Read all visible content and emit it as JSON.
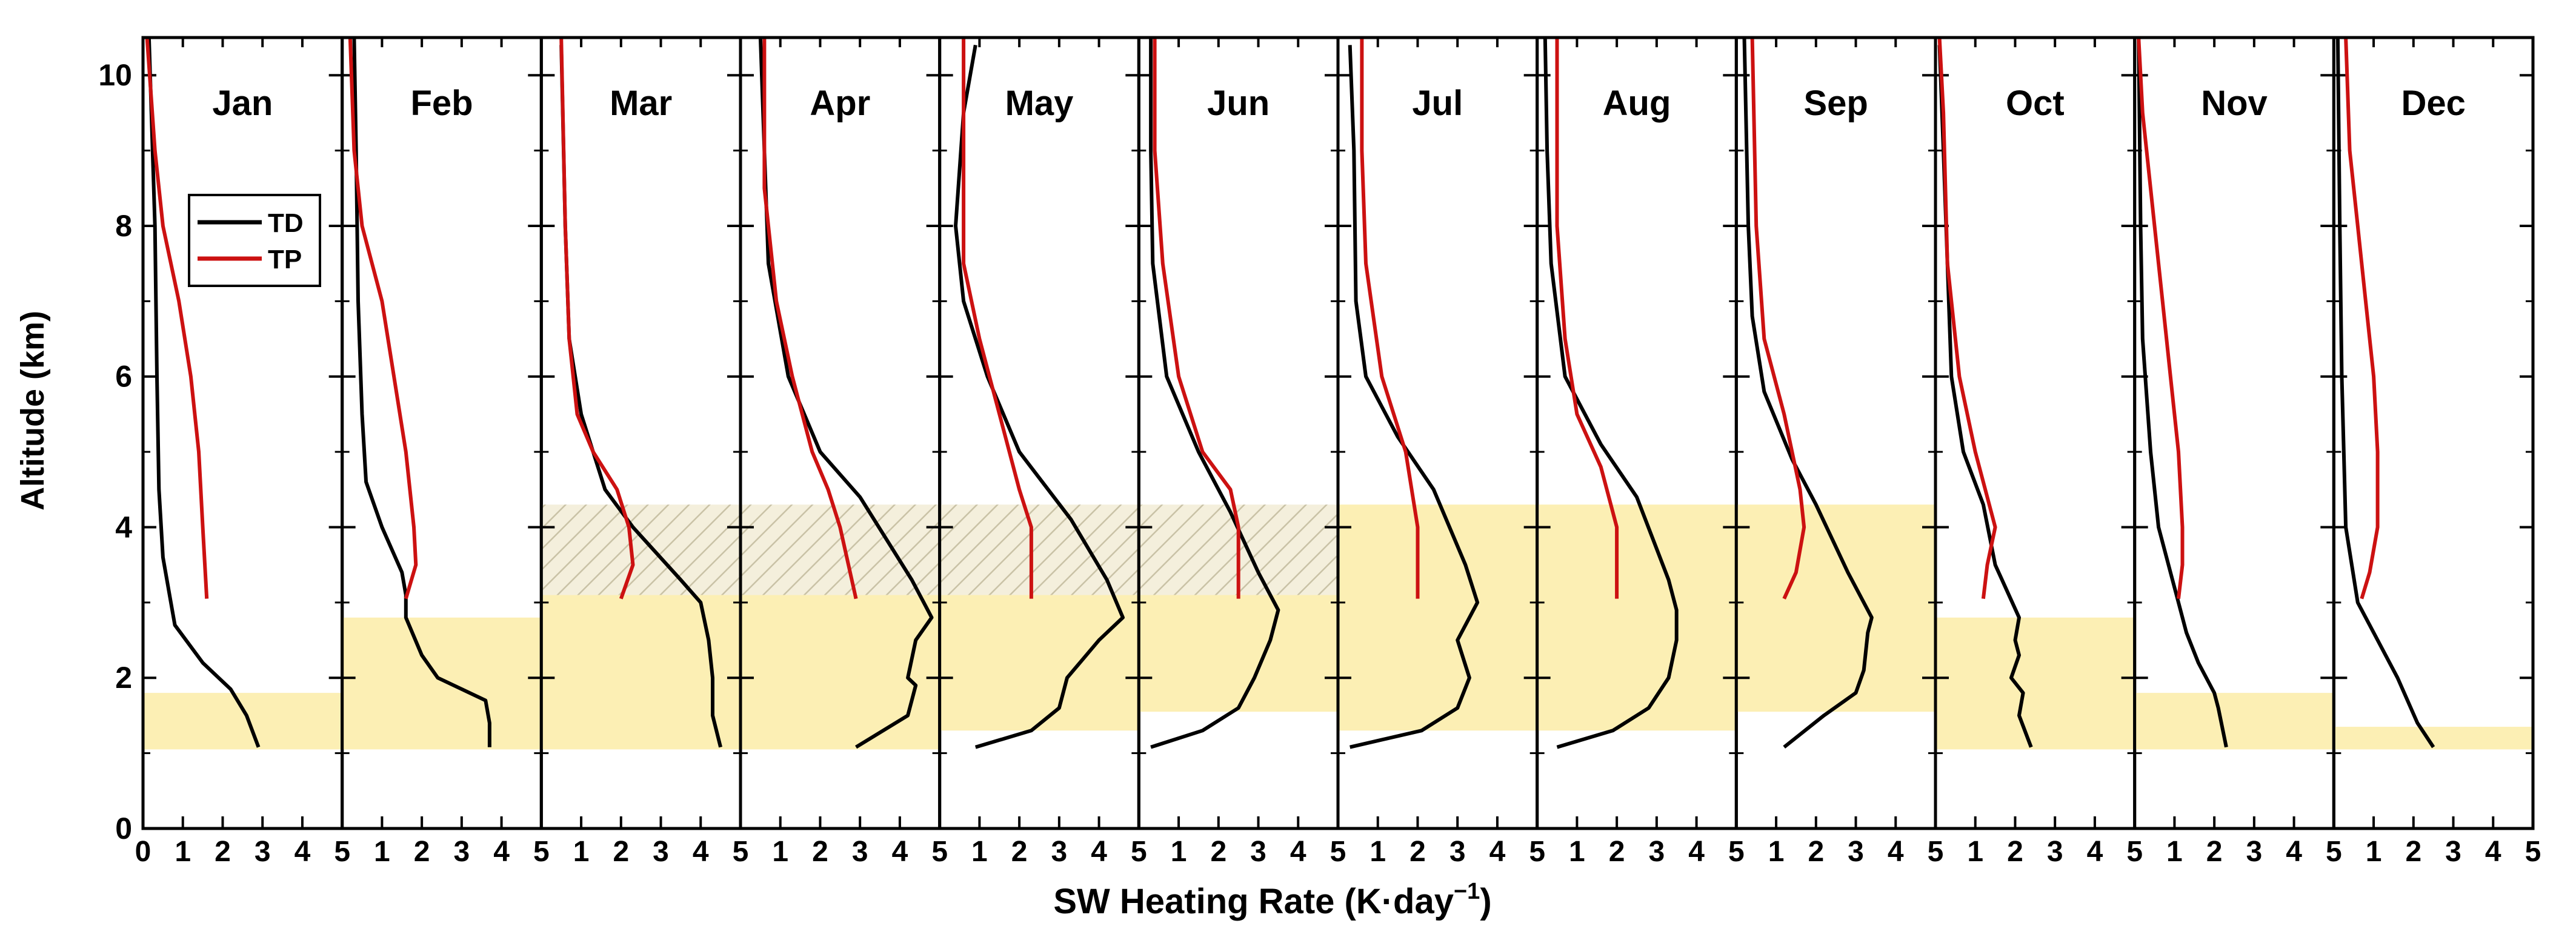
{
  "chart_data": {
    "type": "line",
    "xlabel": "SW Heating Rate (K·day",
    "xlabel_sup": "−1",
    "xlabel_close": ")",
    "ylabel": "Altitude (km)",
    "xlim": [
      0,
      5
    ],
    "ylim": [
      0,
      10.5
    ],
    "x_ticks": [
      "0",
      "1",
      "2",
      "3",
      "4",
      "5"
    ],
    "y_ticks": [
      "0",
      "2",
      "4",
      "6",
      "8",
      "10"
    ],
    "legend": {
      "placement": "upper-left of first panel",
      "entries": [
        "TD",
        "TP"
      ]
    },
    "colors": {
      "TD": "#000000",
      "TP": "#cc1111",
      "band": "#fcefb4",
      "hatch": "#d9d3bc"
    },
    "panels": [
      {
        "month": "Jan",
        "band": [
          1.05,
          1.8
        ],
        "hatch": null,
        "TD": [
          [
            2.9,
            1.08
          ],
          [
            2.6,
            1.5
          ],
          [
            2.2,
            1.85
          ],
          [
            1.5,
            2.2
          ],
          [
            0.8,
            2.7
          ],
          [
            0.7,
            3.0
          ],
          [
            0.5,
            3.6
          ],
          [
            0.4,
            4.5
          ],
          [
            0.35,
            6
          ],
          [
            0.3,
            8
          ],
          [
            0.15,
            10.5
          ]
        ],
        "TP": [
          [
            1.6,
            3.05
          ],
          [
            1.5,
            4
          ],
          [
            1.4,
            5
          ],
          [
            1.2,
            6
          ],
          [
            0.9,
            7
          ],
          [
            0.5,
            8
          ],
          [
            0.3,
            9
          ],
          [
            0.1,
            10.5
          ]
        ]
      },
      {
        "month": "Feb",
        "band": [
          1.05,
          2.8
        ],
        "hatch": null,
        "TD": [
          [
            3.7,
            1.08
          ],
          [
            3.7,
            1.4
          ],
          [
            3.6,
            1.7
          ],
          [
            2.4,
            2.0
          ],
          [
            2.0,
            2.3
          ],
          [
            1.6,
            2.8
          ],
          [
            1.6,
            3.1
          ],
          [
            1.5,
            3.4
          ],
          [
            1.0,
            4.0
          ],
          [
            0.6,
            4.6
          ],
          [
            0.5,
            5.5
          ],
          [
            0.4,
            7
          ],
          [
            0.35,
            9
          ],
          [
            0.3,
            10.5
          ]
        ],
        "TP": [
          [
            1.6,
            3.05
          ],
          [
            1.85,
            3.5
          ],
          [
            1.8,
            4
          ],
          [
            1.6,
            5
          ],
          [
            1.3,
            6
          ],
          [
            1.0,
            7
          ],
          [
            0.5,
            8
          ],
          [
            0.3,
            9
          ],
          [
            0.2,
            10.5
          ]
        ]
      },
      {
        "month": "Mar",
        "band": [
          1.05,
          3.1
        ],
        "hatch": [
          3.1,
          4.3
        ],
        "TD": [
          [
            4.5,
            1.08
          ],
          [
            4.3,
            1.5
          ],
          [
            4.3,
            2.0
          ],
          [
            4.2,
            2.5
          ],
          [
            4.0,
            3.0
          ],
          [
            3.5,
            3.3
          ],
          [
            2.3,
            4.0
          ],
          [
            1.6,
            4.5
          ],
          [
            1.0,
            5.5
          ],
          [
            0.7,
            6.5
          ],
          [
            0.6,
            8
          ],
          [
            0.5,
            10.4
          ]
        ],
        "TP": [
          [
            2.0,
            3.05
          ],
          [
            2.3,
            3.5
          ],
          [
            2.2,
            4.0
          ],
          [
            1.9,
            4.5
          ],
          [
            1.3,
            5.0
          ],
          [
            0.9,
            5.5
          ],
          [
            0.7,
            6.5
          ],
          [
            0.6,
            8
          ],
          [
            0.5,
            10.5
          ]
        ]
      },
      {
        "month": "Apr",
        "band": [
          1.05,
          3.1
        ],
        "hatch": [
          3.1,
          4.3
        ],
        "TD": [
          [
            2.9,
            1.08
          ],
          [
            4.2,
            1.5
          ],
          [
            4.4,
            1.9
          ],
          [
            4.2,
            2.0
          ],
          [
            4.4,
            2.5
          ],
          [
            4.8,
            2.8
          ],
          [
            4.3,
            3.3
          ],
          [
            3.0,
            4.4
          ],
          [
            2.0,
            5.0
          ],
          [
            1.2,
            6.0
          ],
          [
            0.7,
            7.5
          ],
          [
            0.6,
            9
          ],
          [
            0.5,
            10.5
          ]
        ],
        "TP": [
          [
            2.9,
            3.05
          ],
          [
            2.5,
            4.0
          ],
          [
            2.2,
            4.5
          ],
          [
            1.8,
            5.0
          ],
          [
            1.3,
            6.0
          ],
          [
            0.9,
            7.0
          ],
          [
            0.6,
            8.5
          ],
          [
            0.6,
            10.5
          ]
        ]
      },
      {
        "month": "May",
        "band": [
          1.3,
          3.1
        ],
        "hatch": [
          3.1,
          4.3
        ],
        "TD": [
          [
            0.9,
            1.08
          ],
          [
            2.3,
            1.3
          ],
          [
            3.0,
            1.6
          ],
          [
            3.2,
            2.0
          ],
          [
            4.0,
            2.5
          ],
          [
            4.6,
            2.8
          ],
          [
            4.2,
            3.3
          ],
          [
            3.3,
            4.1
          ],
          [
            2.0,
            5.0
          ],
          [
            1.2,
            6.0
          ],
          [
            0.6,
            7.0
          ],
          [
            0.4,
            8.0
          ],
          [
            0.6,
            9.5
          ],
          [
            0.9,
            10.4
          ]
        ],
        "TP": [
          [
            2.3,
            3.05
          ],
          [
            2.3,
            4.0
          ],
          [
            2.0,
            4.5
          ],
          [
            1.5,
            5.5
          ],
          [
            1.0,
            6.5
          ],
          [
            0.6,
            7.5
          ],
          [
            0.6,
            10.5
          ]
        ]
      },
      {
        "month": "Jun",
        "band": [
          1.55,
          3.1
        ],
        "hatch": [
          3.1,
          4.3
        ],
        "TD": [
          [
            0.3,
            1.08
          ],
          [
            1.6,
            1.3
          ],
          [
            2.5,
            1.6
          ],
          [
            2.9,
            2.0
          ],
          [
            3.3,
            2.5
          ],
          [
            3.5,
            2.9
          ],
          [
            3.0,
            3.4
          ],
          [
            2.3,
            4.2
          ],
          [
            1.5,
            5.0
          ],
          [
            0.7,
            6.0
          ],
          [
            0.35,
            7.5
          ],
          [
            0.3,
            9
          ],
          [
            0.3,
            10.5
          ]
        ],
        "TP": [
          [
            2.5,
            3.05
          ],
          [
            2.5,
            4.0
          ],
          [
            2.3,
            4.5
          ],
          [
            1.6,
            5.0
          ],
          [
            1.0,
            6.0
          ],
          [
            0.6,
            7.5
          ],
          [
            0.4,
            9
          ],
          [
            0.4,
            10.5
          ]
        ]
      },
      {
        "month": "Jul",
        "band": [
          1.3,
          4.3
        ],
        "hatch": null,
        "TD": [
          [
            0.3,
            1.08
          ],
          [
            2.1,
            1.3
          ],
          [
            3.0,
            1.6
          ],
          [
            3.3,
            2.0
          ],
          [
            3.0,
            2.5
          ],
          [
            3.5,
            3.0
          ],
          [
            3.2,
            3.5
          ],
          [
            2.4,
            4.5
          ],
          [
            1.5,
            5.2
          ],
          [
            0.7,
            6.0
          ],
          [
            0.45,
            7.0
          ],
          [
            0.4,
            9
          ],
          [
            0.3,
            10.4
          ]
        ],
        "TP": [
          [
            2.0,
            3.05
          ],
          [
            2.0,
            4.0
          ],
          [
            1.7,
            5.0
          ],
          [
            1.1,
            6.0
          ],
          [
            0.7,
            7.5
          ],
          [
            0.6,
            9
          ],
          [
            0.6,
            10.5
          ]
        ]
      },
      {
        "month": "Aug",
        "band": [
          1.3,
          4.3
        ],
        "hatch": null,
        "TD": [
          [
            0.5,
            1.08
          ],
          [
            1.9,
            1.3
          ],
          [
            2.8,
            1.6
          ],
          [
            3.3,
            2.0
          ],
          [
            3.5,
            2.5
          ],
          [
            3.5,
            2.9
          ],
          [
            3.3,
            3.3
          ],
          [
            2.5,
            4.4
          ],
          [
            1.6,
            5.1
          ],
          [
            0.7,
            6.0
          ],
          [
            0.35,
            7.5
          ],
          [
            0.25,
            9
          ],
          [
            0.2,
            10.5
          ]
        ],
        "TP": [
          [
            2.0,
            3.05
          ],
          [
            2.0,
            4.0
          ],
          [
            1.6,
            4.8
          ],
          [
            1.0,
            5.5
          ],
          [
            0.7,
            6.5
          ],
          [
            0.5,
            8
          ],
          [
            0.5,
            10.5
          ]
        ]
      },
      {
        "month": "Sep",
        "band": [
          1.55,
          4.3
        ],
        "hatch": null,
        "TD": [
          [
            1.2,
            1.08
          ],
          [
            2.2,
            1.5
          ],
          [
            3.0,
            1.8
          ],
          [
            3.2,
            2.1
          ],
          [
            3.3,
            2.6
          ],
          [
            3.4,
            2.8
          ],
          [
            2.8,
            3.4
          ],
          [
            2.0,
            4.3
          ],
          [
            1.4,
            4.9
          ],
          [
            0.7,
            5.8
          ],
          [
            0.4,
            6.8
          ],
          [
            0.3,
            8
          ],
          [
            0.2,
            10.5
          ]
        ],
        "TP": [
          [
            1.2,
            3.05
          ],
          [
            1.5,
            3.4
          ],
          [
            1.7,
            4.0
          ],
          [
            1.6,
            4.5
          ],
          [
            1.2,
            5.5
          ],
          [
            0.7,
            6.5
          ],
          [
            0.5,
            8
          ],
          [
            0.4,
            10.5
          ]
        ]
      },
      {
        "month": "Oct",
        "band": [
          1.05,
          2.8
        ],
        "hatch": null,
        "TD": [
          [
            2.4,
            1.08
          ],
          [
            2.1,
            1.5
          ],
          [
            2.2,
            1.8
          ],
          [
            1.9,
            2.0
          ],
          [
            2.1,
            2.3
          ],
          [
            2.0,
            2.5
          ],
          [
            2.1,
            2.8
          ],
          [
            1.5,
            3.5
          ],
          [
            1.2,
            4.3
          ],
          [
            0.7,
            5.0
          ],
          [
            0.4,
            6.0
          ],
          [
            0.3,
            7.5
          ],
          [
            0.2,
            9
          ],
          [
            0.1,
            10.4
          ]
        ],
        "TP": [
          [
            1.2,
            3.05
          ],
          [
            1.3,
            3.5
          ],
          [
            1.5,
            4.0
          ],
          [
            1.0,
            5.0
          ],
          [
            0.6,
            6.0
          ],
          [
            0.3,
            7.5
          ],
          [
            0.2,
            9.5
          ],
          [
            0.1,
            10.5
          ]
        ]
      },
      {
        "month": "Nov",
        "band": [
          1.05,
          1.8
        ],
        "hatch": null,
        "TD": [
          [
            2.3,
            1.08
          ],
          [
            2.1,
            1.6
          ],
          [
            2.0,
            1.8
          ],
          [
            1.6,
            2.2
          ],
          [
            1.3,
            2.6
          ],
          [
            1.1,
            3.0
          ],
          [
            0.9,
            3.4
          ],
          [
            0.6,
            4.0
          ],
          [
            0.4,
            5.0
          ],
          [
            0.2,
            6.5
          ],
          [
            0.15,
            8
          ],
          [
            0.1,
            10.5
          ]
        ],
        "TP": [
          [
            1.1,
            3.05
          ],
          [
            1.2,
            3.5
          ],
          [
            1.2,
            4.0
          ],
          [
            1.1,
            5.0
          ],
          [
            0.9,
            6.0
          ],
          [
            0.7,
            7.0
          ],
          [
            0.5,
            8.0
          ],
          [
            0.2,
            9.5
          ],
          [
            0.1,
            10.5
          ]
        ]
      },
      {
        "month": "Dec",
        "band": [
          1.05,
          1.35
        ],
        "hatch": null,
        "TD": [
          [
            2.5,
            1.08
          ],
          [
            2.1,
            1.4
          ],
          [
            1.6,
            2.0
          ],
          [
            1.0,
            2.6
          ],
          [
            0.6,
            3.0
          ],
          [
            0.3,
            4.0
          ],
          [
            0.2,
            6.0
          ],
          [
            0.15,
            8
          ],
          [
            0.1,
            10.5
          ]
        ],
        "TP": [
          [
            0.7,
            3.05
          ],
          [
            0.9,
            3.4
          ],
          [
            1.1,
            4.0
          ],
          [
            1.1,
            5.0
          ],
          [
            1.0,
            6.0
          ],
          [
            0.8,
            7.0
          ],
          [
            0.6,
            8.0
          ],
          [
            0.4,
            9.0
          ],
          [
            0.3,
            10.5
          ]
        ]
      }
    ]
  }
}
